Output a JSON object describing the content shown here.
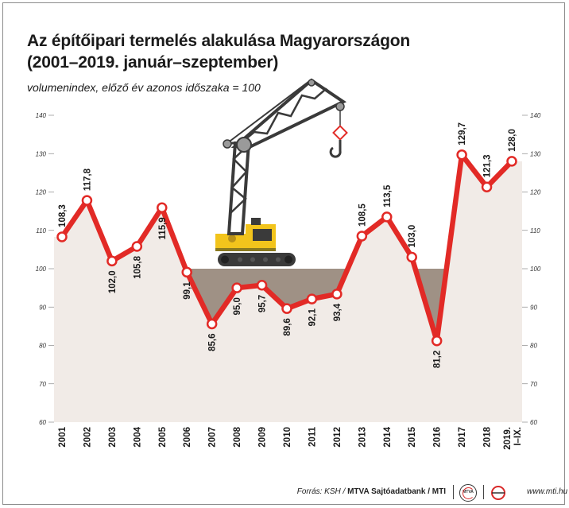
{
  "title_line1": "Az építőipari termelés alakulása Magyarországon",
  "title_line2": "(2001–2019. január–szeptember)",
  "subtitle": "volumenindex, előző év azonos időszaka = 100",
  "footer": {
    "source_prefix": "Forrás: KSH / ",
    "source_bold": "MTVA Sajtóadatbank / MTI",
    "mtva_logo_text": "MTVA",
    "website": "www.mti.hu"
  },
  "colors": {
    "line": "#e22a26",
    "marker_fill": "#ffffff",
    "area_above_100": "#ffffff",
    "area_below_100": "#f1ebe7",
    "band_below_100": "#9f9185",
    "crane_yellow": "#f2c41c",
    "crane_dark": "#3a3a3a"
  },
  "chart_data": {
    "type": "area",
    "categories": [
      "2001",
      "2002",
      "2003",
      "2004",
      "2005",
      "2006",
      "2007",
      "2008",
      "2009",
      "2010",
      "2011",
      "2012",
      "2013",
      "2014",
      "2015",
      "2016",
      "2017",
      "2018",
      "2019. I–IX."
    ],
    "values": [
      108.3,
      117.8,
      102.0,
      105.8,
      115.9,
      99.1,
      85.6,
      95.0,
      95.7,
      89.6,
      92.1,
      93.4,
      108.5,
      113.5,
      103.0,
      81.2,
      129.7,
      121.3,
      128.0
    ],
    "value_labels": [
      "108,3",
      "117,8",
      "102,0",
      "105,8",
      "115,9",
      "99,1",
      "85,6",
      "95,0",
      "95,7",
      "89,6",
      "92,1",
      "93,4",
      "108,5",
      "113,5",
      "103,0",
      "81,2",
      "129,7",
      "121,3",
      "128,0"
    ],
    "label_position": [
      "above",
      "above",
      "below",
      "below",
      "below",
      "below",
      "below",
      "below",
      "below",
      "below",
      "below",
      "below",
      "above",
      "above",
      "above",
      "below",
      "above",
      "above",
      "above"
    ],
    "baseline": 100,
    "ylim": [
      60,
      140
    ],
    "yticks": [
      60,
      70,
      80,
      90,
      100,
      110,
      120,
      130,
      140
    ],
    "ytick_labels_both_sides": true,
    "grid": false,
    "legend": "none"
  }
}
